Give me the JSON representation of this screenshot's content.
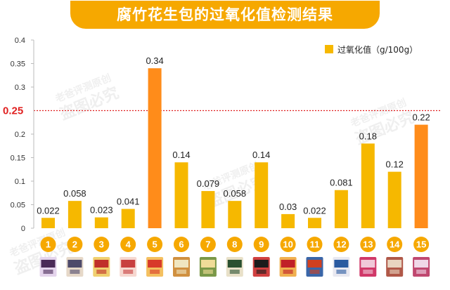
{
  "chart_data": {
    "type": "bar",
    "title": "腐竹花生包的过氧化值检测结果",
    "categories": [
      "1",
      "2",
      "3",
      "4",
      "5",
      "6",
      "7",
      "8",
      "9",
      "10",
      "11",
      "12",
      "13",
      "14",
      "15"
    ],
    "series": [
      {
        "name": "过氧化值（g/100g）",
        "values": [
          0.022,
          0.058,
          0.023,
          0.041,
          0.34,
          0.14,
          0.079,
          0.058,
          0.14,
          0.03,
          0.022,
          0.081,
          0.18,
          0.12,
          0.22
        ],
        "labels": [
          "0.022",
          "0.058",
          "0.023",
          "0.041",
          "0.34",
          "0.14",
          "0.079",
          "0.058",
          "0.14",
          "0.03",
          "0.022",
          "0.081",
          "0.18",
          "0.12",
          "0.22"
        ]
      }
    ],
    "highlight": [
      5,
      15
    ],
    "yticks": [
      "0",
      "0.05",
      "0.1",
      "0.15",
      "0.2",
      "0.25",
      "0.3",
      "0.35",
      "0.4"
    ],
    "ylim": [
      0,
      0.4
    ],
    "reference_line": {
      "value": 0.25,
      "label": "0.25",
      "color": "#e02020",
      "style": "dotted"
    },
    "legend": {
      "position": "top-right",
      "label": "过氧化值（g/100g）"
    },
    "grid": false,
    "colors": {
      "bar": "#f6b800",
      "highlight": "#ff8c1a",
      "circle": "#f6a800",
      "banner": "#f6a800"
    }
  },
  "watermarks": [
    "老爸评测原创",
    "盗图必究"
  ]
}
